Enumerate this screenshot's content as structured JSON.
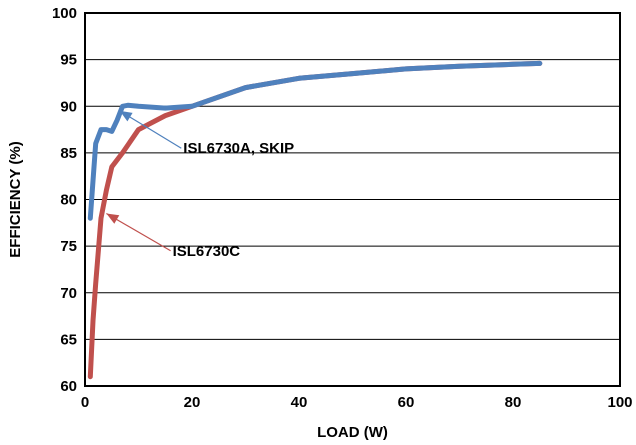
{
  "chart_data": {
    "type": "line",
    "xlabel": "LOAD (W)",
    "ylabel": "EFFICIENCY (%)",
    "xlim": [
      0,
      100
    ],
    "ylim": [
      60,
      100
    ],
    "x_ticks": [
      0,
      20,
      40,
      60,
      80,
      100
    ],
    "y_ticks": [
      60,
      65,
      70,
      75,
      80,
      85,
      90,
      95,
      100
    ],
    "grid": "horizontal",
    "legend": "none",
    "series": [
      {
        "name": "ISL6730C",
        "color": "#c0504d",
        "points": [
          [
            1,
            61
          ],
          [
            1.5,
            67
          ],
          [
            2,
            71
          ],
          [
            3,
            78
          ],
          [
            4,
            81
          ],
          [
            5,
            83.5
          ],
          [
            7,
            85
          ],
          [
            10,
            87.5
          ],
          [
            15,
            89
          ],
          [
            20,
            90
          ],
          [
            30,
            92
          ],
          [
            40,
            93
          ],
          [
            50,
            93.5
          ],
          [
            60,
            94
          ],
          [
            70,
            94.3
          ],
          [
            80,
            94.5
          ],
          [
            85,
            94.6
          ]
        ]
      },
      {
        "name": "ISL6730A, SKIP",
        "color": "#4f81bd",
        "points": [
          [
            1,
            78
          ],
          [
            1.5,
            82
          ],
          [
            2,
            86
          ],
          [
            3,
            87.5
          ],
          [
            4,
            87.5
          ],
          [
            5,
            87.3
          ],
          [
            6,
            88.5
          ],
          [
            7,
            90
          ],
          [
            8,
            90.1
          ],
          [
            10,
            90
          ],
          [
            15,
            89.8
          ],
          [
            20,
            90
          ],
          [
            30,
            92
          ],
          [
            40,
            93
          ],
          [
            50,
            93.5
          ],
          [
            60,
            94
          ],
          [
            70,
            94.3
          ],
          [
            80,
            94.5
          ],
          [
            85,
            94.6
          ]
        ]
      }
    ],
    "annotations": [
      {
        "text": "ISL6730A, SKIP",
        "series": 1,
        "point": [
          6.5,
          89.5
        ],
        "label_at": [
          18,
          85.5
        ]
      },
      {
        "text": "ISL6730C",
        "series": 0,
        "point": [
          4,
          78.5
        ],
        "label_at": [
          16,
          74.5
        ]
      }
    ]
  }
}
